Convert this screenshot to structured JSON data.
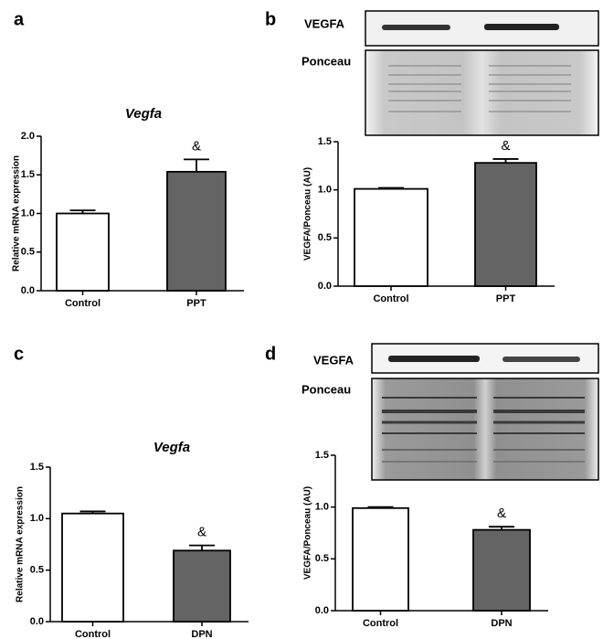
{
  "chart_data": [
    {
      "type": "bar",
      "panel": "a",
      "title": "Vegfa",
      "ylabel": "Relative mRNA expression",
      "categories": [
        "Control",
        "PPT"
      ],
      "values": [
        1.0,
        1.54
      ],
      "errors": [
        0.04,
        0.16
      ],
      "annotations": [
        null,
        "&"
      ],
      "colors": [
        "#ffffff",
        "#646464"
      ],
      "ylim": [
        0,
        2
      ],
      "yticks": [
        {
          "value": 0,
          "label": "0.0"
        },
        {
          "value": 0.5,
          "label": "0.5"
        },
        {
          "value": 1,
          "label": "1.0"
        },
        {
          "value": 1.5,
          "label": "1.5"
        },
        {
          "value": 2,
          "label": "2.0"
        }
      ]
    },
    {
      "type": "bar",
      "panel": "b",
      "blot_labels": [
        "VEGFA",
        "Ponceau"
      ],
      "ylabel": "VEGFA/Ponceau (AU)",
      "categories": [
        "Control",
        "PPT"
      ],
      "values": [
        1.01,
        1.28
      ],
      "errors": [
        0.01,
        0.04
      ],
      "annotations": [
        null,
        "&"
      ],
      "colors": [
        "#ffffff",
        "#646464"
      ],
      "ylim": [
        0,
        1.5
      ],
      "yticks": [
        {
          "value": 0,
          "label": "0.0"
        },
        {
          "value": 0.5,
          "label": "0.5"
        },
        {
          "value": 1,
          "label": "1.0"
        },
        {
          "value": 1.5,
          "label": "1.5"
        }
      ]
    },
    {
      "type": "bar",
      "panel": "c",
      "title": "Vegfa",
      "ylabel": "Relative mRNA expression",
      "categories": [
        "Control",
        "DPN"
      ],
      "values": [
        1.05,
        0.69
      ],
      "errors": [
        0.02,
        0.05
      ],
      "annotations": [
        null,
        "&"
      ],
      "colors": [
        "#ffffff",
        "#646464"
      ],
      "ylim": [
        0,
        1.5
      ],
      "yticks": [
        {
          "value": 0,
          "label": "0.0"
        },
        {
          "value": 0.5,
          "label": "0.5"
        },
        {
          "value": 1,
          "label": "1.0"
        },
        {
          "value": 1.5,
          "label": "1.5"
        }
      ]
    },
    {
      "type": "bar",
      "panel": "d",
      "blot_labels": [
        "VEGFA",
        "Ponceau"
      ],
      "ylabel": "VEGFA/Ponceau (AU)",
      "categories": [
        "Control",
        "DPN"
      ],
      "values": [
        0.99,
        0.78
      ],
      "errors": [
        0.01,
        0.03
      ],
      "annotations": [
        null,
        "&"
      ],
      "colors": [
        "#ffffff",
        "#646464"
      ],
      "ylim": [
        0,
        1.5
      ],
      "yticks": [
        {
          "value": 0,
          "label": "0.0"
        },
        {
          "value": 0.5,
          "label": "0.5"
        },
        {
          "value": 1,
          "label": "1.0"
        },
        {
          "value": 1.5,
          "label": "1.5"
        }
      ]
    }
  ]
}
